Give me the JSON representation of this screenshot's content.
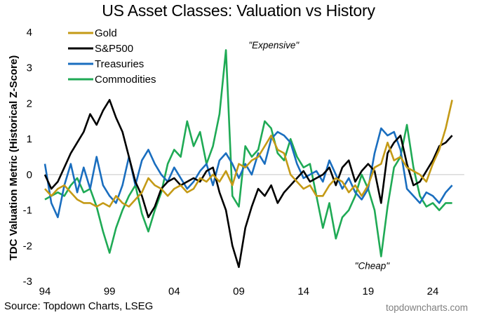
{
  "source": "Source: Topdown Charts, LSEG",
  "brand": "topdowncharts.com",
  "chart_data": {
    "type": "line",
    "title": "US Asset Classes: Valuation vs History",
    "xlabel": "",
    "ylabel": "TDC Valuation Metric (Historical Z-Score)",
    "ylim": [
      -3,
      4
    ],
    "xlim": [
      1994,
      2026
    ],
    "yticks": [
      4,
      3,
      2,
      1,
      0,
      -1,
      -2,
      -3
    ],
    "xticks": [
      {
        "value": 1994,
        "label": "94"
      },
      {
        "value": 1999,
        "label": "99"
      },
      {
        "value": 2004,
        "label": "04"
      },
      {
        "value": 2009,
        "label": "09"
      },
      {
        "value": 2014,
        "label": "14"
      },
      {
        "value": 2019,
        "label": "19"
      },
      {
        "value": 2024,
        "label": "24"
      }
    ],
    "grid": false,
    "zero_line": true,
    "legend": {
      "position": "top-left"
    },
    "annotations": [
      {
        "text": "\"Expensive\"",
        "x": 2011.7,
        "y": 3.55
      },
      {
        "text": "\"Cheap\"",
        "x": 2019.3,
        "y": -2.65
      }
    ],
    "x": [
      1994.0,
      1994.5,
      1995.0,
      1995.5,
      1996.0,
      1996.5,
      1997.0,
      1997.5,
      1998.0,
      1998.5,
      1999.0,
      1999.5,
      2000.0,
      2000.5,
      2001.0,
      2001.5,
      2002.0,
      2002.5,
      2003.0,
      2003.5,
      2004.0,
      2004.5,
      2005.0,
      2005.5,
      2006.0,
      2006.5,
      2007.0,
      2007.5,
      2008.0,
      2008.5,
      2009.0,
      2009.5,
      2010.0,
      2010.5,
      2011.0,
      2011.5,
      2012.0,
      2012.5,
      2013.0,
      2013.5,
      2014.0,
      2014.5,
      2015.0,
      2015.5,
      2016.0,
      2016.5,
      2017.0,
      2017.5,
      2018.0,
      2018.5,
      2019.0,
      2019.5,
      2020.0,
      2020.5,
      2021.0,
      2021.5,
      2022.0,
      2022.5,
      2023.0,
      2023.5,
      2024.0,
      2024.5,
      2025.0,
      2025.5
    ],
    "series": [
      {
        "name": "Gold",
        "color": "#c49a16",
        "values": [
          -0.4,
          -0.6,
          -0.4,
          -0.3,
          -0.5,
          -0.7,
          -0.8,
          -0.8,
          -0.9,
          -0.8,
          -0.9,
          -0.6,
          -0.8,
          -0.9,
          -0.7,
          -0.5,
          -0.1,
          -0.3,
          -0.4,
          -0.6,
          -0.4,
          -0.3,
          -0.5,
          -0.4,
          -0.1,
          -0.2,
          0.0,
          -0.2,
          0.1,
          -0.3,
          0.3,
          0.2,
          0.4,
          0.5,
          0.8,
          1.1,
          0.7,
          0.6,
          0.0,
          -0.2,
          -0.4,
          -0.3,
          -0.6,
          -0.6,
          -0.3,
          -0.1,
          -0.2,
          -0.5,
          -0.3,
          -0.6,
          -0.3,
          0.2,
          0.3,
          0.9,
          0.4,
          0.5,
          0.2,
          0.1,
          0.0,
          -0.2,
          0.3,
          0.7,
          1.3,
          2.1
        ]
      },
      {
        "name": "S&P500",
        "color": "#000000",
        "values": [
          0.0,
          -0.4,
          -0.2,
          0.2,
          0.6,
          0.9,
          1.2,
          1.7,
          1.4,
          1.8,
          2.1,
          1.6,
          1.2,
          0.5,
          -0.2,
          -0.6,
          -1.2,
          -0.9,
          -0.4,
          -0.2,
          -0.1,
          -0.3,
          -0.2,
          -0.1,
          -0.2,
          0.1,
          0.2,
          -0.5,
          -1.0,
          -2.0,
          -2.6,
          -1.5,
          -0.9,
          -0.4,
          -0.6,
          -0.3,
          -0.8,
          -0.5,
          -0.3,
          -0.1,
          0.1,
          -0.2,
          -0.1,
          0.0,
          0.2,
          -0.3,
          0.2,
          0.4,
          -0.2,
          0.1,
          0.3,
          0.1,
          -0.8,
          0.6,
          0.9,
          1.1,
          0.3,
          -0.3,
          -0.2,
          0.1,
          0.4,
          0.8,
          0.9,
          1.1
        ]
      },
      {
        "name": "Treasuries",
        "color": "#1a6ebf",
        "values": [
          0.3,
          -0.8,
          -1.2,
          -0.3,
          0.3,
          -0.5,
          0.2,
          -0.4,
          0.5,
          -0.3,
          -0.6,
          -0.8,
          -0.3,
          0.5,
          -0.3,
          0.4,
          0.7,
          0.3,
          0.0,
          -0.2,
          0.2,
          -0.1,
          -0.4,
          -0.2,
          0.1,
          0.3,
          -0.3,
          0.4,
          0.6,
          0.3,
          -0.1,
          0.3,
          0.0,
          0.6,
          0.3,
          1.0,
          1.2,
          1.1,
          0.9,
          0.3,
          -0.1,
          0.0,
          0.1,
          -0.2,
          0.4,
          0.0,
          -0.4,
          -0.1,
          -0.5,
          -0.7,
          -0.4,
          0.6,
          1.3,
          1.1,
          1.2,
          0.7,
          -0.4,
          -0.6,
          -0.8,
          -0.5,
          -0.6,
          -0.8,
          -0.5,
          -0.3
        ]
      },
      {
        "name": "Commodities",
        "color": "#1faa55",
        "values": [
          -0.7,
          -0.6,
          -0.5,
          -0.6,
          -0.3,
          -0.1,
          -0.5,
          -0.4,
          -0.9,
          -1.6,
          -2.2,
          -1.5,
          -1.0,
          -0.6,
          -0.3,
          -1.1,
          -1.6,
          -1.0,
          -0.5,
          0.3,
          0.7,
          0.5,
          1.5,
          0.8,
          1.2,
          0.3,
          0.8,
          1.7,
          3.5,
          -0.6,
          -0.9,
          0.8,
          0.5,
          0.7,
          1.5,
          1.3,
          0.6,
          0.4,
          1.0,
          0.5,
          0.2,
          0.3,
          -0.6,
          -1.5,
          -0.8,
          -1.8,
          -1.2,
          -1.0,
          -0.6,
          0.0,
          -0.4,
          -1.0,
          -2.3,
          -0.9,
          0.2,
          0.5,
          1.4,
          0.2,
          -0.6,
          -0.9,
          -0.8,
          -1.0,
          -0.8,
          -0.8
        ]
      }
    ]
  }
}
